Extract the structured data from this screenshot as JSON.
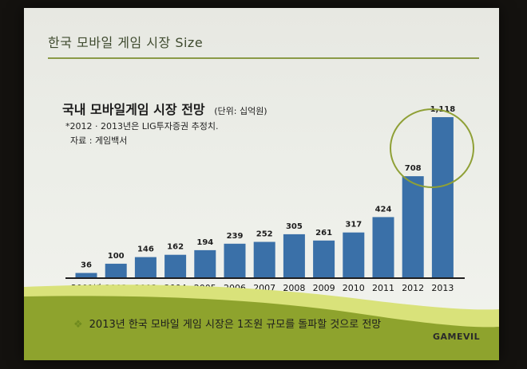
{
  "slide": {
    "title": "한국 모바일 게임 시장 Size",
    "bullet_mark": "❖",
    "bullet_text": "2013년 한국 모바일 게임 시장은 1조원 규모를 돌파할 것으로 전망",
    "logo": "GAMEVIL"
  },
  "colors": {
    "accent": "#8ea32d",
    "bar": "#3a70a8",
    "highlight_circle": "#8fa036"
  },
  "chart_data": {
    "type": "bar",
    "title": "국내 모바일게임 시장 전망",
    "unit_note": "(단위: 십억원)",
    "footnote": "*2012 · 2013년은 LIG투자증권 추정치.",
    "source": "자료 : 게임백서",
    "categories": [
      "2001년",
      "2002",
      "2003",
      "2004",
      "2005",
      "2006",
      "2007",
      "2008",
      "2009",
      "2010",
      "2011",
      "2012",
      "2013"
    ],
    "values": [
      36,
      100,
      146,
      162,
      194,
      239,
      252,
      305,
      261,
      317,
      424,
      708,
      1118
    ],
    "value_labels": [
      "36",
      "100",
      "146",
      "162",
      "194",
      "239",
      "252",
      "305",
      "261",
      "317",
      "424",
      "708",
      "1,118"
    ],
    "ylim": [
      0,
      1118
    ],
    "highlighted_category": "2013",
    "grid": false
  }
}
